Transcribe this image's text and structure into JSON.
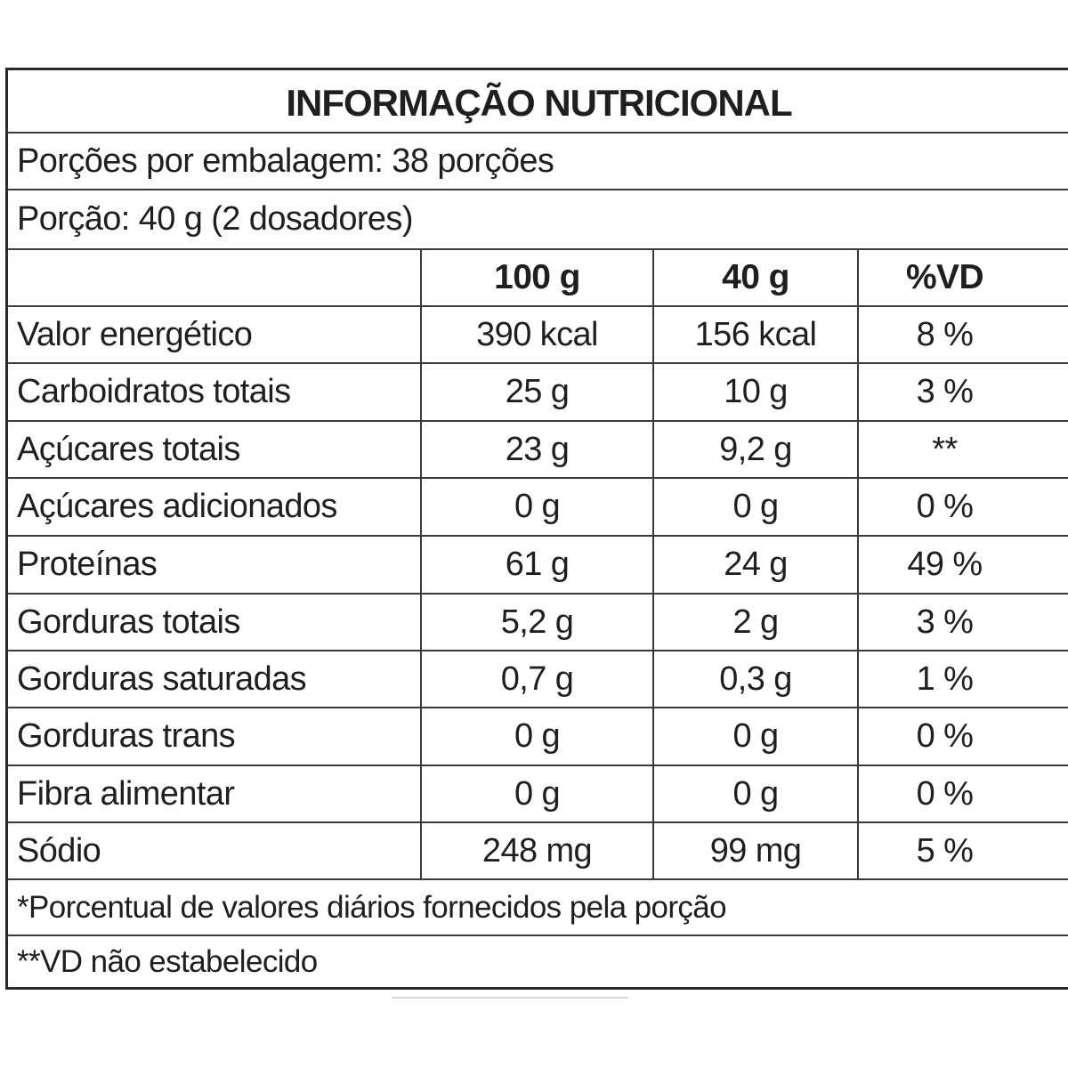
{
  "title": "INFORMAÇÃO NUTRICIONAL",
  "servings_per_package": "Porções por embalagem: 38 porções",
  "serving_size": "Porção: 40 g (2 dosadores)",
  "columns": [
    "",
    "100 g",
    "40 g",
    "%VD"
  ],
  "rows": [
    {
      "name": "Valor energético",
      "per100": "390 kcal",
      "per40": "156 kcal",
      "vd": "8 %"
    },
    {
      "name": "Carboidratos totais",
      "per100": "25 g",
      "per40": "10 g",
      "vd": "3 %"
    },
    {
      "name": "Açúcares totais",
      "per100": "23 g",
      "per40": "9,2 g",
      "vd": "**"
    },
    {
      "name": "Açúcares adicionados",
      "per100": "0 g",
      "per40": "0 g",
      "vd": "0 %"
    },
    {
      "name": "Proteínas",
      "per100": "61 g",
      "per40": "24 g",
      "vd": "49 %"
    },
    {
      "name": "Gorduras totais",
      "per100": "5,2 g",
      "per40": "2 g",
      "vd": "3 %"
    },
    {
      "name": "Gorduras saturadas",
      "per100": "0,7 g",
      "per40": "0,3 g",
      "vd": "1 %"
    },
    {
      "name": "Gorduras trans",
      "per100": "0 g",
      "per40": "0 g",
      "vd": "0 %"
    },
    {
      "name": "Fibra alimentar",
      "per100": "0 g",
      "per40": "0 g",
      "vd": "0 %"
    },
    {
      "name": "Sódio",
      "per100": "248 mg",
      "per40": "99 mg",
      "vd": "5 %"
    }
  ],
  "footnotes": [
    "*Porcentual de valores diários fornecidos pela porção",
    "**VD não estabelecido"
  ]
}
